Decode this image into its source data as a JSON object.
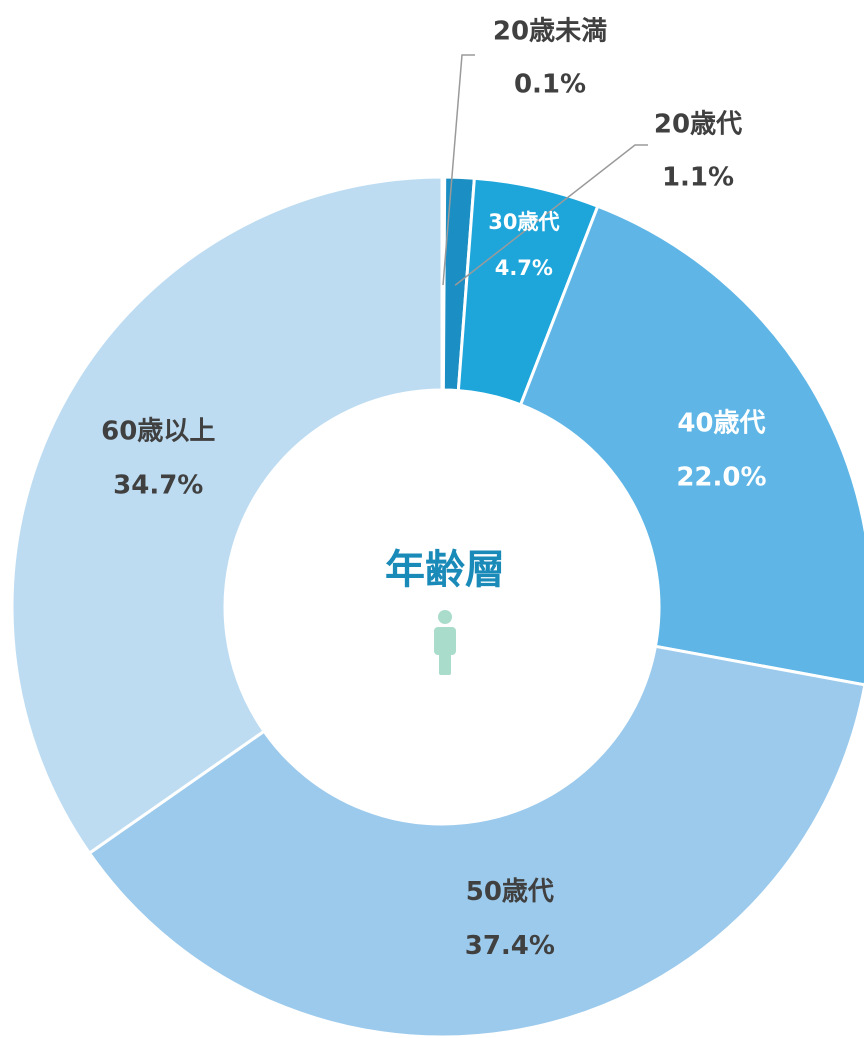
{
  "chart_data": {
    "type": "donut",
    "title": "年齢層",
    "categories": [
      "20歳未満",
      "20歳代",
      "30歳代",
      "40歳代",
      "50歳代",
      "60歳以上"
    ],
    "values": [
      0.1,
      1.1,
      4.7,
      22.0,
      37.4,
      34.7
    ],
    "value_labels": [
      "0.1%",
      "1.1%",
      "4.7%",
      "22.0%",
      "37.4%",
      "34.7%"
    ],
    "colors": [
      "#1a7fae",
      "#1b8fc3",
      "#1ea6db",
      "#5fb6e6",
      "#9ccaec",
      "#bddcf2"
    ]
  }
}
